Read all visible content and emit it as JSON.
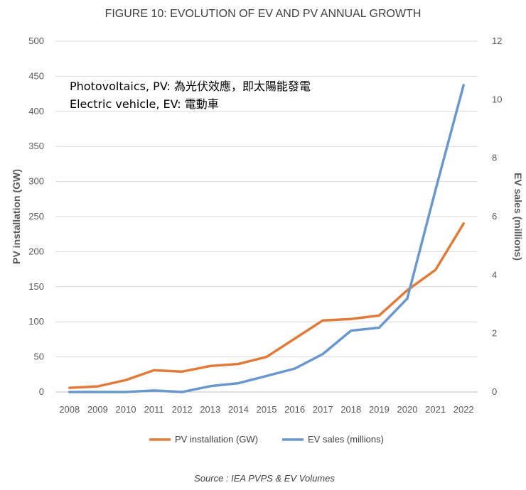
{
  "chart_data": {
    "type": "line",
    "title": "FIGURE 10: EVOLUTION OF EV AND PV ANNUAL GROWTH",
    "categories": [
      "2008",
      "2009",
      "2010",
      "2011",
      "2012",
      "2013",
      "2014",
      "2015",
      "2016",
      "2017",
      "2018",
      "2019",
      "2020",
      "2021",
      "2022"
    ],
    "y_left": {
      "label": "PV installation (GW)",
      "range": [
        0,
        500
      ],
      "ticks": [
        "0",
        "50",
        "100",
        "150",
        "200",
        "250",
        "300",
        "350",
        "400",
        "450",
        "500"
      ]
    },
    "y_right": {
      "label": "EV sales (millions)",
      "range": [
        0,
        12
      ],
      "ticks": [
        "0",
        "2",
        "4",
        "6",
        "8",
        "10",
        "12"
      ]
    },
    "series": [
      {
        "name": "PV installation (GW)",
        "axis": "left",
        "color": "#E07B39",
        "values": [
          6,
          8,
          17,
          31,
          29,
          37,
          40,
          50,
          76,
          102,
          104,
          109,
          145,
          174,
          240
        ]
      },
      {
        "name": "EV sales (millions)",
        "axis": "right",
        "color": "#6A98CC",
        "values": [
          0.0,
          0.0,
          0.0,
          0.05,
          0.0,
          0.2,
          0.3,
          0.55,
          0.8,
          1.3,
          2.1,
          2.2,
          3.2,
          6.9,
          10.5
        ]
      }
    ],
    "annotations": [
      "Photovoltaics, PV: 為光伏效應，即太陽能發電",
      "Electric vehicle, EV: 電動車"
    ],
    "source": "Source : IEA PVPS & EV Volumes",
    "grid": true,
    "legend_position": "bottom"
  }
}
